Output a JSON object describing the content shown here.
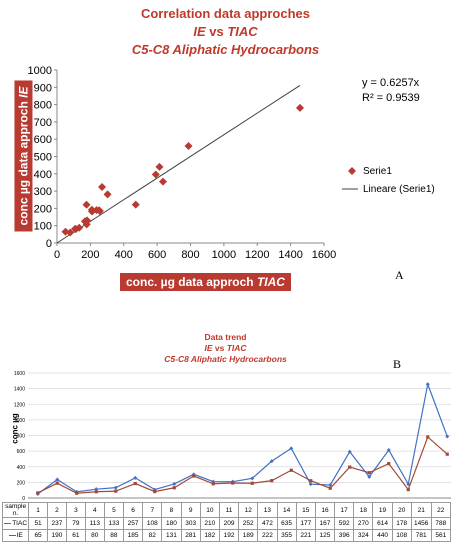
{
  "chart_data": [
    {
      "type": "scatter",
      "title_line1": "Correlation data approches",
      "title_line2_a": "IE",
      "title_line2_b": " vs ",
      "title_line2_c": "TIAC",
      "title_line3": "C5-C8 Aliphatic Hydrocarbons",
      "ylabel_main": "conc µg data approch ",
      "ylabel_em": "IE",
      "xlabel_main": "conc. µg data approch ",
      "xlabel_em": "TIAC",
      "xlim": [
        0,
        1600
      ],
      "ylim": [
        0,
        1000
      ],
      "xticks": [
        "0",
        "200",
        "400",
        "600",
        "800",
        "1000",
        "1200",
        "1400",
        "1600"
      ],
      "yticks": [
        "0",
        "100",
        "200",
        "300",
        "400",
        "500",
        "600",
        "700",
        "800",
        "900",
        "1000"
      ],
      "x": [
        51,
        237,
        79,
        113,
        133,
        257,
        108,
        180,
        303,
        210,
        209,
        252,
        472,
        635,
        177,
        167,
        592,
        270,
        614,
        178,
        1456,
        788
      ],
      "y": [
        65,
        190,
        61,
        80,
        88,
        185,
        82,
        131,
        281,
        182,
        192,
        189,
        222,
        355,
        221,
        125,
        396,
        324,
        440,
        108,
        781,
        561
      ],
      "trendline": {
        "slope": 0.6257,
        "x_range": [
          0,
          1456
        ]
      },
      "equation": "y = 0.6257x",
      "r_squared": "R² = 0.9539",
      "legend": [
        {
          "label": "Serie1",
          "marker": "diamond"
        },
        {
          "label": "Lineare (Serie1)",
          "marker": "line"
        }
      ],
      "legend_position": "right",
      "marker_color": "#b83a30",
      "line_color": "#404040",
      "panel_label": "A"
    },
    {
      "type": "line",
      "title_line1": "Data trend",
      "title_line2_a": "IE",
      "title_line2_b": " vs ",
      "title_line2_c": "TIAC",
      "title_line3": "C5-C8 Aliphatic Hydrocarbons",
      "ylabel": "conc µg",
      "table_header": "sample n.",
      "categories": [
        "1",
        "2",
        "3",
        "4",
        "5",
        "6",
        "7",
        "8",
        "9",
        "10",
        "11",
        "12",
        "13",
        "14",
        "15",
        "16",
        "17",
        "18",
        "19",
        "20",
        "21",
        "22"
      ],
      "ylim": [
        0,
        1600
      ],
      "yticks": [
        "0",
        "200",
        "400",
        "600",
        "800",
        "1000",
        "1200",
        "1400",
        "1600"
      ],
      "series": [
        {
          "name": "TIAC",
          "color": "#4472c4",
          "values": [
            51,
            237,
            79,
            113,
            133,
            257,
            108,
            180,
            303,
            210,
            209,
            252,
            472,
            635,
            177,
            167,
            592,
            270,
            614,
            178,
            1456,
            788
          ]
        },
        {
          "name": "IE",
          "color": "#a04a3a",
          "values": [
            65,
            190,
            61,
            80,
            88,
            185,
            82,
            131,
            281,
            182,
            192,
            189,
            222,
            355,
            221,
            125,
            396,
            324,
            440,
            108,
            781,
            561
          ]
        }
      ],
      "panel_label": "B"
    }
  ]
}
